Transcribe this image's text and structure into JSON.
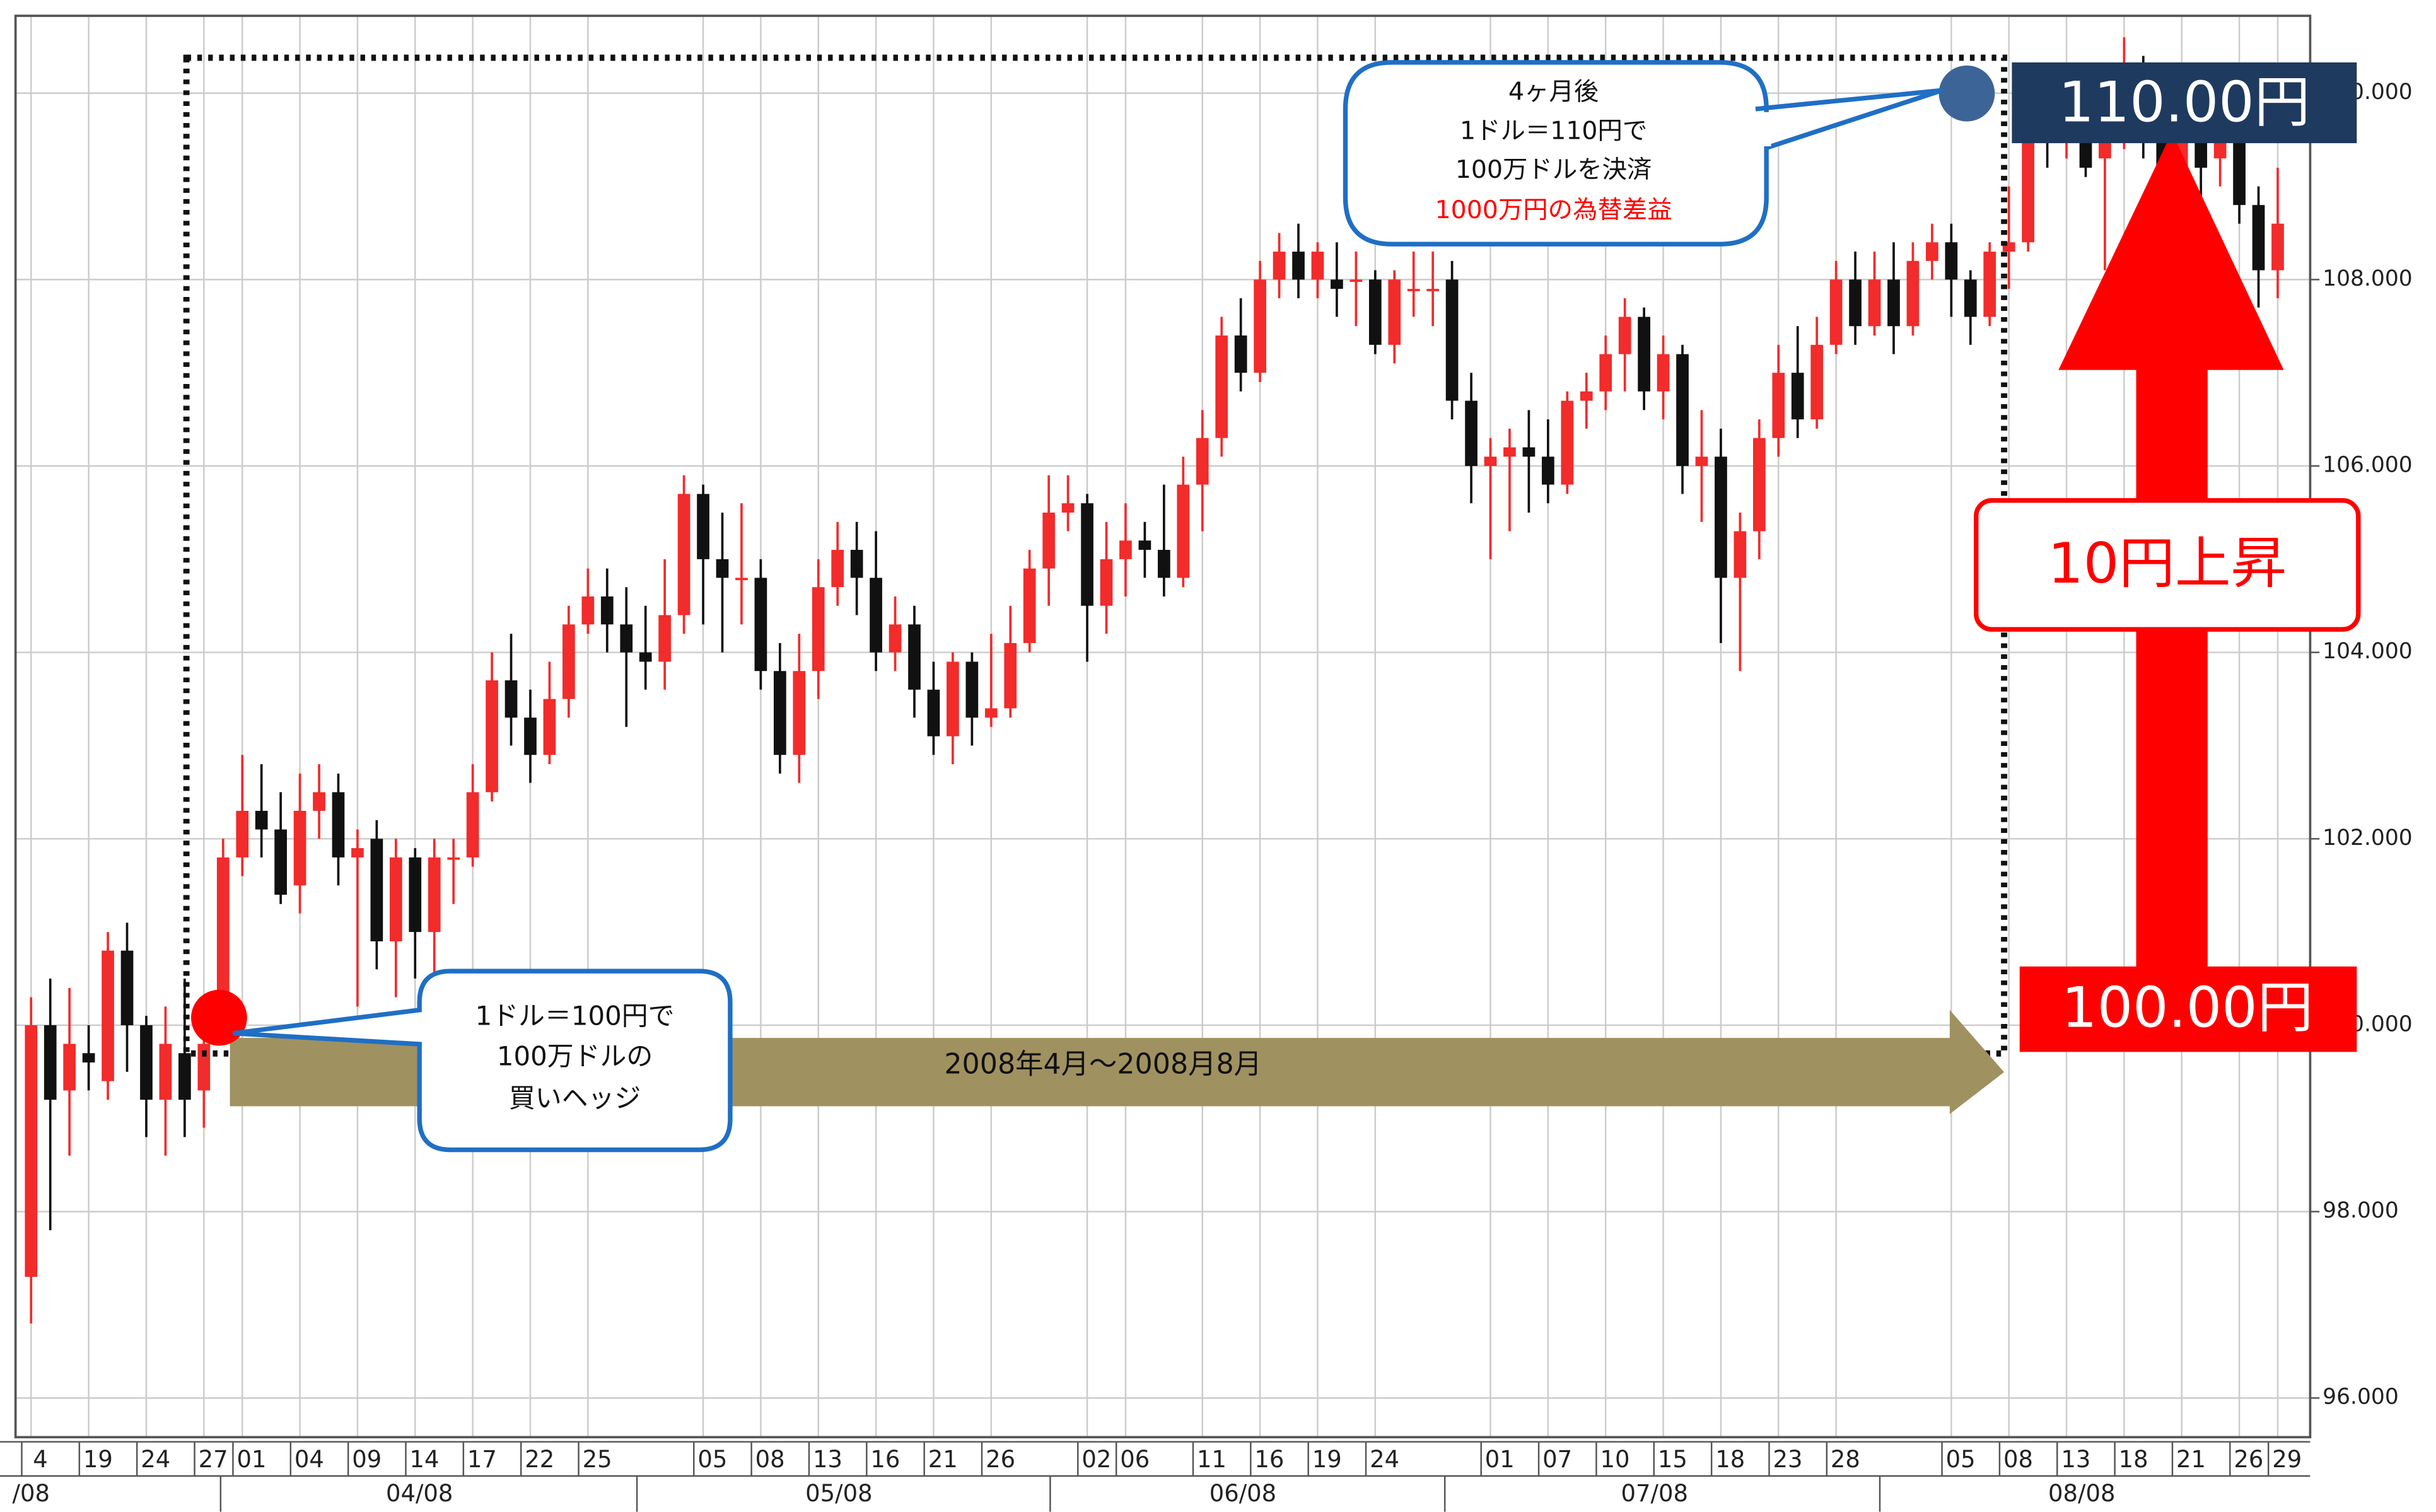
{
  "chart_data": {
    "type": "candlestick",
    "categories": [
      "4",
      null,
      null,
      "19",
      null,
      null,
      "24",
      null,
      null,
      "27",
      null,
      "01",
      null,
      null,
      "04",
      null,
      null,
      "09",
      null,
      null,
      "14",
      null,
      null,
      "17",
      null,
      null,
      "22",
      null,
      null,
      "25",
      null,
      null,
      null,
      null,
      null,
      "05",
      null,
      null,
      "08",
      null,
      null,
      "13",
      null,
      null,
      "16",
      null,
      null,
      "21",
      null,
      null,
      "26",
      null,
      null,
      null,
      null,
      "02",
      null,
      "06",
      null,
      null,
      null,
      "11",
      null,
      null,
      "16",
      null,
      null,
      "19",
      null,
      null,
      "24",
      null,
      null,
      null,
      null,
      null,
      "01",
      null,
      null,
      "07",
      null,
      null,
      "10",
      null,
      null,
      "15",
      null,
      null,
      "18",
      null,
      null,
      "23",
      null,
      null,
      "28",
      null,
      null,
      null,
      null,
      null,
      "05",
      null,
      null,
      "08",
      null,
      null,
      "13",
      null,
      null,
      "18",
      null,
      null,
      "21",
      null,
      null,
      "26",
      null,
      "29"
    ],
    "months": [
      "/08",
      "04/08",
      "05/08",
      "06/08",
      "07/08",
      "08/08"
    ],
    "open": [
      97.3,
      100,
      99.3,
      99.7,
      99.4,
      100.8,
      100,
      99.2,
      99.7,
      99.3,
      100,
      101.8,
      102.3,
      102.1,
      101.5,
      102.3,
      102.5,
      101.8,
      102,
      100.9,
      101.8,
      101.0,
      101.8,
      101.8,
      102.5,
      103.7,
      103.3,
      102.9,
      103.5,
      104.3,
      104.6,
      104.3,
      104.0,
      103.9,
      104.4,
      105.7,
      105.0,
      104.8,
      104.8,
      103.8,
      102.9,
      103.8,
      104.7,
      105.1,
      104.8,
      104.0,
      104.3,
      103.6,
      103.1,
      103.9,
      103.3,
      103.4,
      104.1,
      104.9,
      105.5,
      105.6,
      104.5,
      105.0,
      105.2,
      105.1,
      104.8,
      105.8,
      106.3,
      107.4,
      107.0,
      108.0,
      108.3,
      108.0,
      108.0,
      108.0,
      108.0,
      107.3,
      107.9,
      107.9,
      108.0,
      106.7,
      106.0,
      106.1,
      106.2,
      106.1,
      105.8,
      106.7,
      106.8,
      107.2,
      107.6,
      106.8,
      107.2,
      106.0,
      106.1,
      104.8,
      105.3,
      106.3,
      107.0,
      106.5,
      107.3,
      108.0,
      107.5,
      108.0,
      107.5,
      108.2,
      108.4,
      108.0,
      107.6,
      108.3,
      108.4,
      109.8,
      109.5,
      109.8,
      109.3,
      109.6,
      110.3,
      110.0,
      108.8,
      109.6,
      109.3,
      109.5,
      108.8,
      108.1
    ],
    "high": [
      100.3,
      100.5,
      100.4,
      100,
      101,
      101.1,
      100.1,
      100.2,
      100.5,
      100.3,
      102,
      102.9,
      102.8,
      102.5,
      102.7,
      102.8,
      102.7,
      102.1,
      102.2,
      102.0,
      101.9,
      102.0,
      102,
      102.8,
      104.0,
      104.2,
      103.6,
      103.9,
      104.5,
      104.9,
      104.9,
      104.7,
      104.5,
      105.0,
      105.9,
      105.8,
      105.5,
      105.6,
      105.0,
      104.1,
      104.2,
      105.0,
      105.4,
      105.4,
      105.3,
      104.6,
      104.5,
      103.9,
      104.0,
      104.0,
      104.2,
      104.5,
      105.1,
      105.9,
      105.9,
      105.7,
      105.4,
      105.6,
      105.4,
      105.8,
      106.1,
      106.6,
      107.6,
      107.8,
      108.2,
      108.5,
      108.6,
      108.4,
      108.4,
      108.3,
      108.1,
      108.1,
      108.3,
      108.3,
      108.2,
      107.0,
      106.3,
      106.4,
      106.6,
      106.5,
      106.8,
      107.0,
      107.4,
      107.8,
      107.7,
      107.4,
      107.3,
      106.6,
      106.4,
      105.5,
      106.5,
      107.3,
      107.5,
      107.6,
      108.2,
      108.3,
      108.3,
      108.4,
      108.4,
      108.6,
      108.6,
      108.1,
      108.4,
      109.0,
      110.0,
      110.1,
      110.2,
      110.2,
      110.3,
      110.6,
      110.4,
      110.3,
      109.8,
      110.1,
      109.7,
      109.7,
      109.0,
      109.2
    ],
    "low": [
      96.8,
      97.8,
      98.6,
      99.3,
      99.2,
      99.5,
      98.8,
      98.6,
      98.8,
      98.9,
      99.8,
      101.6,
      101.8,
      101.3,
      101.2,
      102,
      101.5,
      100.2,
      100.6,
      100.3,
      100.5,
      100.5,
      101.3,
      101.7,
      102.4,
      103.0,
      102.6,
      102.8,
      103.3,
      104.2,
      104.0,
      103.2,
      103.6,
      103.6,
      104.2,
      104.3,
      104.0,
      104.3,
      103.6,
      102.7,
      102.6,
      103.5,
      104.5,
      104.4,
      103.8,
      103.8,
      103.3,
      102.9,
      102.8,
      103.0,
      103.2,
      103.3,
      104.0,
      104.5,
      105.3,
      103.9,
      104.2,
      104.6,
      104.8,
      104.6,
      104.7,
      105.3,
      106.1,
      106.8,
      106.9,
      107.8,
      107.8,
      107.8,
      107.6,
      107.5,
      107.2,
      107.1,
      107.6,
      107.5,
      106.5,
      105.6,
      105.0,
      105.3,
      105.5,
      105.6,
      105.7,
      106.4,
      106.6,
      106.8,
      106.6,
      106.5,
      105.7,
      105.4,
      104.1,
      103.8,
      105.0,
      106.1,
      106.3,
      106.4,
      107.2,
      107.3,
      107.4,
      107.2,
      107.4,
      108.0,
      107.6,
      107.3,
      107.5,
      107.9,
      108.3,
      109.2,
      109.3,
      109.1,
      108.1,
      109.4,
      109.3,
      108.6,
      108.6,
      108.9,
      109.0,
      108.6,
      107.7,
      107.8
    ],
    "close": [
      100,
      99.2,
      99.8,
      99.6,
      100.8,
      100,
      99.2,
      99.8,
      99.2,
      99.8,
      101.8,
      102.3,
      102.1,
      101.4,
      102.3,
      102.5,
      101.8,
      101.9,
      100.9,
      101.8,
      101.0,
      101.8,
      101.8,
      102.5,
      103.7,
      103.3,
      102.9,
      103.5,
      104.3,
      104.6,
      104.3,
      104.0,
      103.9,
      104.4,
      105.7,
      105.0,
      104.8,
      104.8,
      103.8,
      102.9,
      103.8,
      104.7,
      105.1,
      104.8,
      104.0,
      104.3,
      103.6,
      103.1,
      103.9,
      103.3,
      103.4,
      104.1,
      104.9,
      105.5,
      105.6,
      104.5,
      105.0,
      105.2,
      105.1,
      104.8,
      105.8,
      106.3,
      107.4,
      107.0,
      108.0,
      108.3,
      108.0,
      108.3,
      107.9,
      108.0,
      107.3,
      108.0,
      107.9,
      107.9,
      106.7,
      106.0,
      106.1,
      106.2,
      106.1,
      105.8,
      106.7,
      106.8,
      107.2,
      107.6,
      106.8,
      107.2,
      106.0,
      106.1,
      104.8,
      105.3,
      106.3,
      107.0,
      106.5,
      107.3,
      108.0,
      107.5,
      108.0,
      107.5,
      108.2,
      108.4,
      108.0,
      107.6,
      108.3,
      108.4,
      109.8,
      109.5,
      109.8,
      109.2,
      109.6,
      110.3,
      110.0,
      108.8,
      109.6,
      109.2,
      109.5,
      108.8,
      108.1,
      108.6
    ],
    "up_color": "#f22b2b",
    "down_color": "#111111",
    "ylim": [
      95.58,
      110.83
    ],
    "yticks": [
      {
        "value": 96,
        "label": "96.000"
      },
      {
        "value": 98,
        "label": "98.000"
      },
      {
        "value": 100,
        "label": "100.000"
      },
      {
        "value": 102,
        "label": "102.000"
      },
      {
        "value": 104,
        "label": "104.000"
      },
      {
        "value": 106,
        "label": "106.000"
      },
      {
        "value": 108,
        "label": "108.000"
      },
      {
        "value": 110,
        "label": "110.000"
      }
    ],
    "grid": true,
    "annotations": {
      "exit_note": [
        "4ヶ月後",
        "1ドル＝110円で",
        "100万ドルを決済",
        "1000万円の為替差益"
      ],
      "entry_note": [
        "1ドル＝100円で",
        "100万ドルの",
        "買いヘッジ"
      ],
      "period": "2008年4月〜2008月8月",
      "exit_price": "110.00円",
      "entry_price": "100.00円",
      "rise": "10円上昇"
    }
  }
}
